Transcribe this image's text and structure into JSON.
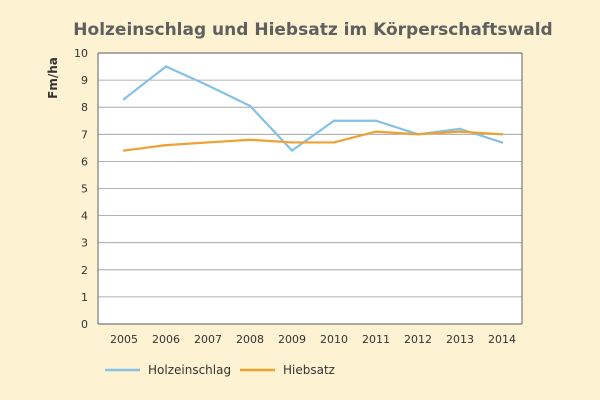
{
  "chart_data": {
    "type": "line",
    "title": "Holzeinschlag und Hiebsatz im Körperschaftswald",
    "ylabel": "Fm/ha",
    "xlabel": "",
    "x": [
      "2005",
      "2006",
      "2007",
      "2008",
      "2009",
      "2010",
      "2011",
      "2012",
      "2013",
      "2014"
    ],
    "yticks": [
      "0",
      "1",
      "2",
      "3",
      "4",
      "5",
      "6",
      "7",
      "8",
      "9",
      "10"
    ],
    "ylim": [
      0,
      10
    ],
    "grid": true,
    "legend_position": "bottom",
    "series": [
      {
        "name": "Holzeinschlag",
        "color": "#84c1e4",
        "values": [
          8.3,
          9.5,
          8.8,
          8.05,
          6.4,
          7.5,
          7.5,
          7.0,
          7.2,
          6.7
        ]
      },
      {
        "name": "Hiebsatz",
        "color": "#f0a030",
        "values": [
          6.4,
          6.6,
          6.7,
          6.8,
          6.7,
          6.7,
          7.1,
          7.0,
          7.1,
          7.0
        ]
      }
    ]
  }
}
